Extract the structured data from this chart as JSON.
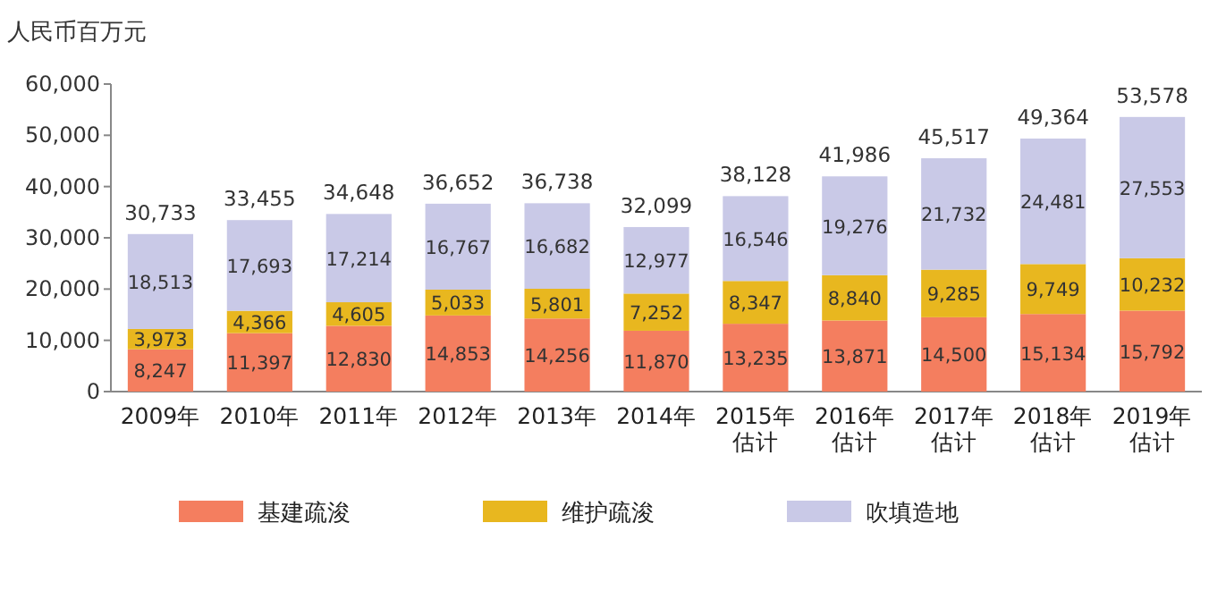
{
  "chart_data": {
    "type": "bar",
    "stacked": true,
    "ylabel": "人民币百万元",
    "categories": [
      "2009年",
      "2010年",
      "2011年",
      "2012年",
      "2013年",
      "2014年",
      "2015年估计",
      "2016年估计",
      "2017年估计",
      "2018年估计",
      "2019年估计"
    ],
    "series": [
      {
        "name": "基建疏浚",
        "color": "#f47e5f",
        "values": [
          8247,
          11397,
          12830,
          14853,
          14256,
          11870,
          13235,
          13871,
          14500,
          15134,
          15792
        ],
        "value_labels": [
          "8,247",
          "11,397",
          "12,830",
          "14,853",
          "14,256",
          "11,870",
          "13,235",
          "13,871",
          "14,500",
          "15,134",
          "15,792"
        ]
      },
      {
        "name": "维护疏浚",
        "color": "#e8b71f",
        "values": [
          3973,
          4366,
          4605,
          5033,
          5801,
          7252,
          8347,
          8840,
          9285,
          9749,
          10232
        ],
        "value_labels": [
          "3,973",
          "4,366",
          "4,605",
          "5,033",
          "5,801",
          "7,252",
          "8,347",
          "8,840",
          "9,285",
          "9,749",
          "10,232"
        ]
      },
      {
        "name": "吹填造地",
        "color": "#c9c9e7",
        "values": [
          18513,
          17693,
          17214,
          16767,
          16682,
          12977,
          16546,
          19276,
          21732,
          24481,
          27553
        ],
        "value_labels": [
          "18,513",
          "17,693",
          "17,214",
          "16,767",
          "16,682",
          "12,977",
          "16,546",
          "19,276",
          "21,732",
          "24,481",
          "27,553"
        ]
      }
    ],
    "totals": [
      "30,733",
      "33,455",
      "34,648",
      "36,652",
      "36,738",
      "32,099",
      "38,128",
      "41,986",
      "45,517",
      "49,364",
      "53,578"
    ],
    "ylim": [
      0,
      60000
    ],
    "yticks": [
      {
        "value": 0,
        "label": "0"
      },
      {
        "value": 10000,
        "label": "10,000"
      },
      {
        "value": 20000,
        "label": "20,000"
      },
      {
        "value": 30000,
        "label": "30,000"
      },
      {
        "value": 40000,
        "label": "40,000"
      },
      {
        "value": 50000,
        "label": "50,000"
      },
      {
        "value": 60000,
        "label": "60,000"
      }
    ],
    "grid": false,
    "legend": "bottom"
  }
}
